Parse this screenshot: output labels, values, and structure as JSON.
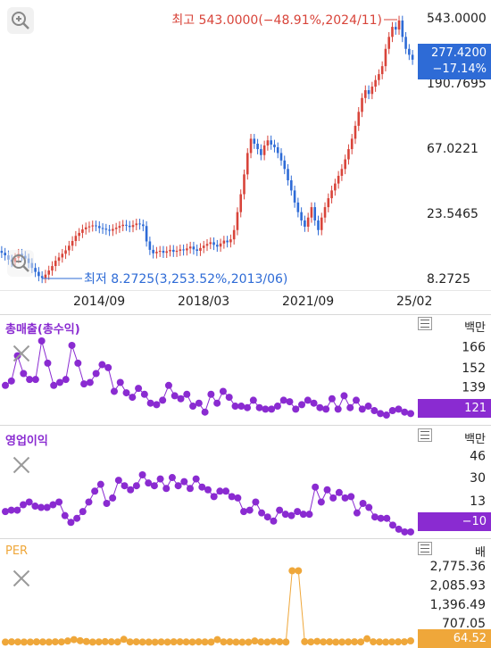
{
  "chart_data": [
    {
      "type": "candlestick",
      "x_ticks": [
        "2014/09",
        "2018/03",
        "2021/09",
        "25/02"
      ],
      "y_ticks": [
        "543.0000",
        "190.7695",
        "67.0221",
        "23.5465",
        "8.2725"
      ],
      "scale": "log",
      "ylim": [
        8.2725,
        543.0
      ],
      "annotations": {
        "high": "최고 543.0000(−48.91%,2024/11)",
        "low": "최저 8.2725(3,253.52%,2013/06)"
      },
      "last_price": "277.4200",
      "last_change": "−17.14%",
      "close_series": [
        12.5,
        12,
        11.2,
        10.8,
        11.5,
        12.3,
        11.9,
        11.4,
        10.6,
        9.8,
        9.2,
        8.6,
        8.35,
        8.8,
        9.4,
        10.1,
        11,
        11.6,
        12.3,
        13,
        14,
        15.1,
        16.4,
        17.2,
        18.2,
        18.8,
        19.1,
        19.4,
        19.2,
        18.6,
        18.4,
        18.1,
        17.8,
        18.3,
        18.7,
        19.2,
        19.6,
        19.3,
        18.9,
        19.5,
        20,
        19.7,
        19.2,
        15,
        13.1,
        12.4,
        12.7,
        12.9,
        12.5,
        12.8,
        13.1,
        12.7,
        12.9,
        13.2,
        13,
        13.4,
        13.8,
        13.2,
        12.9,
        13.5,
        14,
        14.4,
        14.8,
        14.2,
        13.8,
        14.5,
        15.2,
        14.8,
        15.5,
        18,
        24,
        32,
        44,
        62,
        78,
        72,
        66,
        60,
        70,
        76,
        71,
        68,
        62,
        55,
        48,
        40,
        34,
        28,
        24,
        21,
        19,
        22,
        26,
        21,
        18,
        22,
        26,
        30,
        34,
        38,
        43,
        48,
        56,
        66,
        78,
        96,
        120,
        150,
        170,
        160,
        180,
        200,
        220,
        250,
        330,
        400,
        470,
        450,
        520,
        400,
        330,
        300,
        277.42
      ]
    },
    {
      "type": "scatter",
      "title": "총매출(총수익)",
      "unit": "백만",
      "y_ticks": [
        "166",
        "152",
        "139"
      ],
      "last_value": "121",
      "ylim": [
        117,
        176
      ],
      "values": [
        140,
        143,
        160,
        148,
        144,
        144,
        170,
        155,
        140,
        142,
        144,
        167,
        155,
        141,
        142,
        148,
        154,
        152,
        136,
        142,
        135,
        132,
        138,
        134,
        128,
        127,
        130,
        140,
        133,
        131,
        134,
        126,
        128,
        122,
        134,
        128,
        136,
        132,
        126,
        126,
        125,
        130,
        125,
        124,
        124,
        126,
        130,
        129,
        124,
        127,
        130,
        128,
        125,
        124,
        131,
        124,
        133,
        125,
        130,
        124,
        126,
        123,
        121,
        120,
        123,
        124,
        122,
        121
      ]
    },
    {
      "type": "scatter",
      "title": "영업이익",
      "unit": "백만",
      "y_ticks": [
        "46",
        "30",
        "13"
      ],
      "last_value": "−10",
      "ylim": [
        -12,
        55
      ],
      "values": [
        5,
        6,
        6,
        10,
        12,
        9,
        8,
        8,
        10,
        12,
        2,
        -3,
        0,
        5,
        12,
        20,
        25,
        11,
        15,
        28,
        24,
        21,
        24,
        32,
        26,
        24,
        29,
        22,
        30,
        24,
        27,
        22,
        29,
        23,
        21,
        16,
        20,
        20,
        16,
        15,
        5,
        6,
        12,
        4,
        1,
        -2,
        6,
        3,
        2,
        5,
        3,
        3,
        23,
        12,
        21,
        15,
        19,
        15,
        16,
        4,
        11,
        8,
        1,
        0,
        0,
        -5,
        -8,
        -10,
        -10
      ]
    },
    {
      "type": "scatter",
      "title": "PER",
      "unit": "배",
      "y_ticks": [
        "2,775.36",
        "2,085.93",
        "1,396.49",
        "707.05"
      ],
      "last_value": "64.52",
      "ylim": [
        0,
        3100
      ],
      "values": [
        20,
        30,
        25,
        20,
        22,
        28,
        25,
        20,
        30,
        25,
        60,
        110,
        70,
        40,
        20,
        25,
        35,
        30,
        25,
        120,
        25,
        30,
        22,
        20,
        18,
        25,
        20,
        28,
        30,
        25,
        22,
        30,
        24,
        20,
        110,
        25,
        30,
        20,
        15,
        18,
        60,
        25,
        20,
        45,
        30,
        22,
        2600,
        2600,
        35,
        25,
        45,
        25,
        30,
        20,
        22,
        25,
        30,
        25,
        140,
        30,
        25,
        20,
        25,
        28,
        30,
        64.52
      ]
    }
  ],
  "colors": {
    "up": "#d8443a",
    "down": "#2e6bd6",
    "indicator": "#8a2bd1",
    "per": "#efa73a",
    "last_tag_main": "#2e6bd6"
  },
  "icons": [
    "zoom-in-icon",
    "zoom-out-icon",
    "close-icon",
    "menu-icon"
  ]
}
